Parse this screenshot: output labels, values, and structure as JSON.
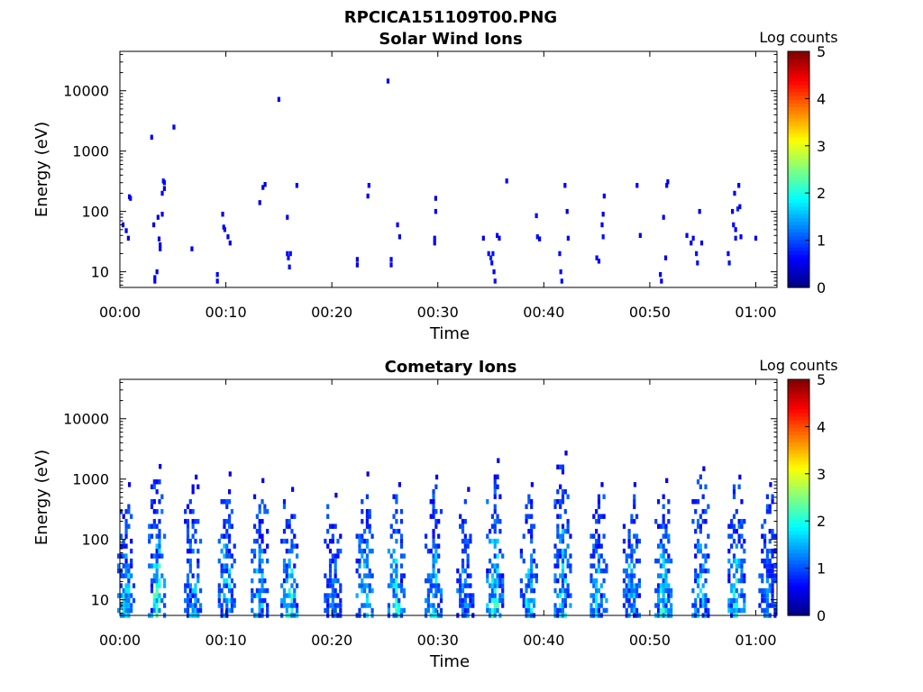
{
  "figure_title": "RPCICA151109T00.PNG",
  "chart_data": [
    {
      "type": "heatmap",
      "title": "Solar Wind Ions",
      "xlabel": "Time",
      "ylabel": "Energy (eV)",
      "yscale": "log",
      "xlim_min": [
        0,
        62
      ],
      "ylim": [
        5.5,
        45000
      ],
      "x_ticks": [
        {
          "v": 0,
          "label": "00:00"
        },
        {
          "v": 10,
          "label": "00:10"
        },
        {
          "v": 20,
          "label": "00:20"
        },
        {
          "v": 30,
          "label": "00:30"
        },
        {
          "v": 40,
          "label": "00:40"
        },
        {
          "v": 50,
          "label": "00:50"
        },
        {
          "v": 60,
          "label": "01:00"
        }
      ],
      "y_ticks": [
        {
          "v": 10,
          "label": "10"
        },
        {
          "v": 100,
          "label": "100"
        },
        {
          "v": 1000,
          "label": "1000"
        },
        {
          "v": 10000,
          "label": "10000"
        }
      ],
      "colorbar": {
        "label": "Log counts",
        "min": 0,
        "max": 5,
        "ticks": [
          "0",
          "1",
          "2",
          "3",
          "4",
          "5"
        ],
        "colormap": "jet"
      },
      "grid": false,
      "cells": [
        [
          0.3,
          60,
          0.6
        ],
        [
          0.6,
          48,
          0.5
        ],
        [
          0.8,
          36,
          0.5
        ],
        [
          0.9,
          175,
          0.6
        ],
        [
          1.0,
          165,
          0.5
        ],
        [
          3.0,
          1700,
          0.6
        ],
        [
          3.2,
          60,
          0.5
        ],
        [
          3.3,
          8,
          0.6
        ],
        [
          3.3,
          7,
          0.6
        ],
        [
          3.5,
          10,
          0.5
        ],
        [
          3.6,
          80,
          0.5
        ],
        [
          3.7,
          35,
          0.5
        ],
        [
          3.8,
          24,
          0.6
        ],
        [
          3.8,
          28,
          0.5
        ],
        [
          4.0,
          90,
          0.6
        ],
        [
          4.0,
          200,
          0.6
        ],
        [
          4.1,
          320,
          0.7
        ],
        [
          4.2,
          240,
          0.5
        ],
        [
          4.2,
          300,
          0.6
        ],
        [
          5.1,
          2500,
          0.6
        ],
        [
          6.8,
          24,
          0.6
        ],
        [
          9.2,
          9,
          0.6
        ],
        [
          9.2,
          7,
          0.6
        ],
        [
          9.7,
          90,
          0.5
        ],
        [
          9.8,
          55,
          0.6
        ],
        [
          9.9,
          50,
          0.7
        ],
        [
          10.2,
          38,
          0.5
        ],
        [
          10.4,
          30,
          0.6
        ],
        [
          13.2,
          140,
          0.5
        ],
        [
          13.5,
          250,
          0.6
        ],
        [
          13.7,
          280,
          0.5
        ],
        [
          15.0,
          7200,
          0.6
        ],
        [
          15.8,
          80,
          0.6
        ],
        [
          15.8,
          20,
          0.7
        ],
        [
          15.9,
          17,
          0.7
        ],
        [
          16.0,
          12,
          0.7
        ],
        [
          16.1,
          20,
          0.7
        ],
        [
          16.7,
          270,
          0.5
        ],
        [
          22.4,
          16,
          0.5
        ],
        [
          22.4,
          13,
          0.5
        ],
        [
          23.4,
          180,
          0.6
        ],
        [
          23.5,
          270,
          0.6
        ],
        [
          25.3,
          14500,
          0.6
        ],
        [
          25.6,
          16,
          0.6
        ],
        [
          25.6,
          13,
          0.6
        ],
        [
          26.2,
          60,
          0.6
        ],
        [
          26.4,
          38,
          0.5
        ],
        [
          29.7,
          36,
          0.6
        ],
        [
          29.7,
          30,
          0.5
        ],
        [
          29.8,
          100,
          0.6
        ],
        [
          29.8,
          165,
          0.5
        ],
        [
          34.3,
          36,
          0.5
        ],
        [
          34.8,
          20,
          0.7
        ],
        [
          35.0,
          17,
          0.8
        ],
        [
          35.1,
          14,
          0.7
        ],
        [
          35.2,
          20,
          0.7
        ],
        [
          35.3,
          10,
          0.6
        ],
        [
          35.4,
          7,
          0.7
        ],
        [
          35.6,
          40,
          0.6
        ],
        [
          35.8,
          36,
          0.5
        ],
        [
          36.5,
          320,
          0.6
        ],
        [
          39.3,
          85,
          0.6
        ],
        [
          39.4,
          38,
          0.7
        ],
        [
          39.6,
          35,
          0.5
        ],
        [
          41.5,
          20,
          0.6
        ],
        [
          41.6,
          10,
          0.7
        ],
        [
          41.7,
          7,
          0.7
        ],
        [
          42.0,
          270,
          0.6
        ],
        [
          42.2,
          100,
          0.5
        ],
        [
          42.3,
          36,
          0.6
        ],
        [
          45.0,
          17,
          0.6
        ],
        [
          45.2,
          15,
          0.5
        ],
        [
          45.5,
          60,
          0.5
        ],
        [
          45.6,
          90,
          0.6
        ],
        [
          45.7,
          180,
          0.6
        ],
        [
          45.6,
          38,
          0.7
        ],
        [
          48.8,
          270,
          0.6
        ],
        [
          49.1,
          40,
          0.5
        ],
        [
          51.0,
          9,
          0.6
        ],
        [
          51.1,
          7,
          0.5
        ],
        [
          51.3,
          80,
          0.6
        ],
        [
          51.5,
          17,
          0.6
        ],
        [
          51.6,
          270,
          0.6
        ],
        [
          51.7,
          310,
          0.5
        ],
        [
          53.5,
          40,
          0.6
        ],
        [
          53.9,
          30,
          0.5
        ],
        [
          54.1,
          36,
          0.6
        ],
        [
          54.4,
          20,
          0.7
        ],
        [
          54.5,
          14,
          0.7
        ],
        [
          54.7,
          100,
          0.5
        ],
        [
          54.9,
          30,
          0.6
        ],
        [
          57.4,
          20,
          0.6
        ],
        [
          57.5,
          14,
          0.7
        ],
        [
          57.8,
          100,
          0.5
        ],
        [
          57.9,
          60,
          0.6
        ],
        [
          58.1,
          50,
          0.6
        ],
        [
          58.1,
          36,
          0.7
        ],
        [
          58.3,
          110,
          0.8
        ],
        [
          58.5,
          120,
          0.6
        ],
        [
          58.4,
          270,
          0.5
        ],
        [
          58.0,
          200,
          0.5
        ],
        [
          58.6,
          38,
          0.6
        ],
        [
          60.0,
          36,
          0.6
        ]
      ]
    },
    {
      "type": "heatmap",
      "title": "Cometary Ions",
      "xlabel": "Time",
      "ylabel": "Energy (eV)",
      "yscale": "log",
      "xlim_min": [
        0,
        62
      ],
      "ylim": [
        5.5,
        45000
      ],
      "x_ticks": [
        {
          "v": 0,
          "label": "00:00"
        },
        {
          "v": 10,
          "label": "00:10"
        },
        {
          "v": 20,
          "label": "00:20"
        },
        {
          "v": 30,
          "label": "00:30"
        },
        {
          "v": 40,
          "label": "00:40"
        },
        {
          "v": 50,
          "label": "00:50"
        },
        {
          "v": 60,
          "label": "01:00"
        }
      ],
      "y_ticks": [
        {
          "v": 10,
          "label": "10"
        },
        {
          "v": 100,
          "label": "100"
        },
        {
          "v": 1000,
          "label": "1000"
        },
        {
          "v": 10000,
          "label": "10000"
        }
      ],
      "colorbar": {
        "label": "Log counts",
        "min": 0,
        "max": 5,
        "ticks": [
          "0",
          "1",
          "2",
          "3",
          "4",
          "5"
        ],
        "colormap": "jet"
      },
      "grid": false,
      "bursts": [
        {
          "t": 0.6,
          "lo": 5.5,
          "hi": 600,
          "peak": 1.8
        },
        {
          "t": 3.5,
          "lo": 5.5,
          "hi": 1200,
          "peak": 2.3
        },
        {
          "t": 6.9,
          "lo": 5.5,
          "hi": 800,
          "peak": 1.8
        },
        {
          "t": 10.1,
          "lo": 5.5,
          "hi": 900,
          "peak": 1.9
        },
        {
          "t": 13.2,
          "lo": 5.5,
          "hi": 700,
          "peak": 1.8
        },
        {
          "t": 16.0,
          "lo": 5.5,
          "hi": 500,
          "peak": 2.1
        },
        {
          "t": 20.1,
          "lo": 5.5,
          "hi": 400,
          "peak": 1.3
        },
        {
          "t": 23.1,
          "lo": 5.5,
          "hi": 900,
          "peak": 1.8
        },
        {
          "t": 26.1,
          "lo": 5.5,
          "hi": 600,
          "peak": 2.2
        },
        {
          "t": 29.6,
          "lo": 5.5,
          "hi": 800,
          "peak": 1.9
        },
        {
          "t": 32.6,
          "lo": 5.5,
          "hi": 500,
          "peak": 1.5
        },
        {
          "t": 35.4,
          "lo": 5.5,
          "hi": 1500,
          "peak": 2.3
        },
        {
          "t": 38.6,
          "lo": 5.5,
          "hi": 600,
          "peak": 1.9
        },
        {
          "t": 41.8,
          "lo": 5.5,
          "hi": 2000,
          "peak": 2.0
        },
        {
          "t": 45.2,
          "lo": 5.5,
          "hi": 600,
          "peak": 1.9
        },
        {
          "t": 48.3,
          "lo": 5.5,
          "hi": 600,
          "peak": 1.7
        },
        {
          "t": 51.3,
          "lo": 5.5,
          "hi": 700,
          "peak": 2.2
        },
        {
          "t": 54.8,
          "lo": 5.5,
          "hi": 1100,
          "peak": 1.9
        },
        {
          "t": 58.2,
          "lo": 5.5,
          "hi": 800,
          "peak": 2.1
        },
        {
          "t": 61.1,
          "lo": 5.5,
          "hi": 600,
          "peak": 1.4
        }
      ]
    }
  ]
}
